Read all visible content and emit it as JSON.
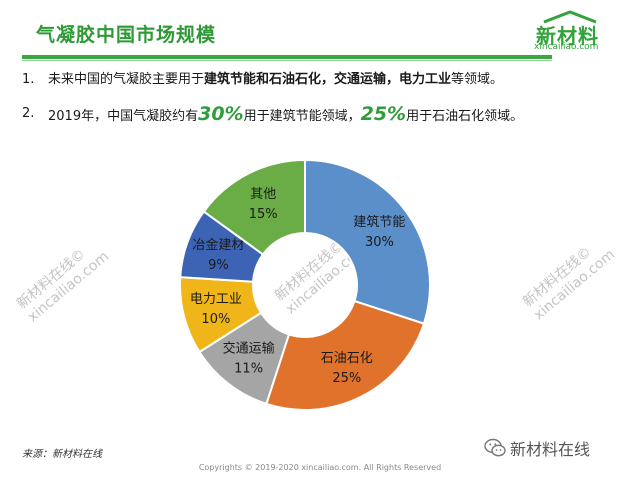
{
  "slide": {
    "title": "气凝胶中国市场规模",
    "logo": {
      "name": "新材料",
      "url": "xincailiao.com"
    },
    "bullets": [
      {
        "num": "1.",
        "parts": [
          {
            "text": "未来中国的气凝胶主要用于"
          },
          {
            "text": "建筑节能和石油石化，交通运输，电力工业",
            "style": "b"
          },
          {
            "text": "等领域。"
          }
        ]
      },
      {
        "num": "2.",
        "parts": [
          {
            "text": "2019年，中国气凝胶约有"
          },
          {
            "text": "30%",
            "style": "hl"
          },
          {
            "text": "用于建筑节能领域，"
          },
          {
            "text": "25%",
            "style": "hl"
          },
          {
            "text": "用于石油石化领域。"
          }
        ]
      }
    ],
    "watermarks": [
      {
        "line1": "新材料在线©",
        "line2": "xincailiao.com"
      },
      {
        "line1": "新材料在线©",
        "line2": "xincailiao.com"
      },
      {
        "line1": "新材料在线©",
        "line2": "xincailiao.com"
      }
    ],
    "source": "来源：新材料在线",
    "copyright": "Copyrights © 2019-2020 xincailiao.com. All Rights Reserved",
    "wechat_label": "新材料在线"
  },
  "chart_data": {
    "type": "pie",
    "title": "",
    "donut": true,
    "start_angle_deg": 0,
    "direction": "clockwise",
    "slices": [
      {
        "label": "建筑节能",
        "value": 30,
        "value_label": "30%",
        "color": "#5b8fc9",
        "text_color": "#1a1a1a"
      },
      {
        "label": "石油石化",
        "value": 25,
        "value_label": "25%",
        "color": "#e1722b",
        "text_color": "#1a1a1a"
      },
      {
        "label": "交通运输",
        "value": 11,
        "value_label": "11%",
        "color": "#a5a5a5",
        "text_color": "#1a1a1a"
      },
      {
        "label": "电力工业",
        "value": 10,
        "value_label": "10%",
        "color": "#f0b619",
        "text_color": "#1a1a1a"
      },
      {
        "label": "冶金建材",
        "value": 9,
        "value_label": "9%",
        "color": "#3d64b4",
        "text_color": "#1a1a1a"
      },
      {
        "label": "其他",
        "value": 15,
        "value_label": "15%",
        "color": "#6aac45",
        "text_color": "#1a1a1a"
      }
    ]
  }
}
